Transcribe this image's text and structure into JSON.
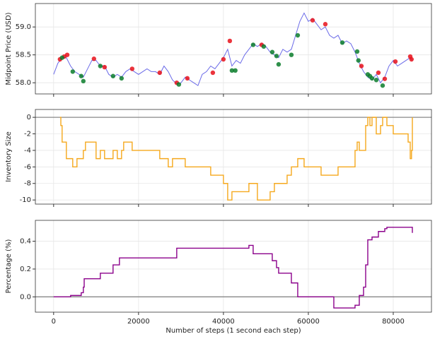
{
  "chart_data": [
    {
      "type": "line",
      "ylabel": "Midpoint Price (USD)",
      "ylim": [
        57.8,
        59.42
      ],
      "yticks": [
        {
          "value": 58,
          "label": "58.0"
        },
        58.5,
        {
          "value": 59,
          "label": "59.0"
        }
      ],
      "grid": true,
      "series": [
        {
          "color": "#5a5ae6",
          "x": [
            0,
            1000,
            2000,
            3000,
            4000,
            5000,
            6000,
            7000,
            8000,
            9000,
            10000,
            11000,
            12000,
            13000,
            14000,
            15000,
            16000,
            17000,
            18000,
            19000,
            20000,
            21000,
            22000,
            23000,
            24000,
            25000,
            26000,
            27000,
            28000,
            29000,
            30000,
            31000,
            32000,
            33000,
            34000,
            35000,
            36000,
            37000,
            38000,
            39000,
            40000,
            41000,
            42000,
            43000,
            44000,
            45000,
            46000,
            47000,
            48000,
            49000,
            50000,
            51000,
            52000,
            53000,
            54000,
            55000,
            56000,
            57000,
            58000,
            59000,
            60000,
            61000,
            62000,
            63000,
            64000,
            65000,
            66000,
            67000,
            68000,
            69000,
            70000,
            71000,
            72000,
            73000,
            74000,
            75000,
            76000,
            77000,
            78000,
            79000,
            80000,
            81000,
            82000,
            83000,
            84000,
            84500
          ],
          "values": [
            58.15,
            58.35,
            58.45,
            58.45,
            58.3,
            58.2,
            58.15,
            58.1,
            58.25,
            58.4,
            58.4,
            58.3,
            58.3,
            58.15,
            58.1,
            58.15,
            58.1,
            58.2,
            58.25,
            58.2,
            58.15,
            58.2,
            58.25,
            58.2,
            58.2,
            58.15,
            58.3,
            58.2,
            58.05,
            57.98,
            58.0,
            58.1,
            58.05,
            58.0,
            57.95,
            58.15,
            58.2,
            58.3,
            58.25,
            58.35,
            58.45,
            58.6,
            58.3,
            58.4,
            58.35,
            58.5,
            58.6,
            58.7,
            58.65,
            58.7,
            58.65,
            58.55,
            58.5,
            58.45,
            58.6,
            58.55,
            58.6,
            58.85,
            59.1,
            59.25,
            59.1,
            59.15,
            59.05,
            58.95,
            59.0,
            58.85,
            58.8,
            58.85,
            58.7,
            58.75,
            58.7,
            58.55,
            58.35,
            58.2,
            58.1,
            58.05,
            58.15,
            58.0,
            58.1,
            58.3,
            58.4,
            58.3,
            58.35,
            58.4,
            58.45,
            58.4
          ]
        }
      ],
      "points": [
        {
          "color": "#e8101a",
          "x": [
            1500,
            2500,
            3200,
            9500,
            12000,
            18500,
            25000,
            29000,
            31500,
            37500,
            40000,
            41500,
            49000,
            61000,
            64000,
            72500,
            76500,
            78000,
            80500,
            84000,
            84300
          ],
          "values": [
            58.42,
            58.47,
            58.5,
            58.43,
            58.28,
            58.25,
            58.18,
            58.0,
            58.08,
            58.18,
            58.42,
            58.75,
            58.68,
            59.12,
            59.05,
            58.3,
            58.18,
            58.07,
            58.38,
            58.47,
            58.42
          ]
        },
        {
          "color": "#0a7d2c",
          "x": [
            2000,
            4500,
            6500,
            7000,
            11000,
            14000,
            16000,
            29500,
            42000,
            42800,
            47000,
            49500,
            51500,
            52500,
            53000,
            56000,
            57500,
            68000,
            71500,
            71800,
            74000,
            74500,
            75000,
            76000,
            77500
          ],
          "values": [
            58.45,
            58.2,
            58.12,
            58.03,
            58.3,
            58.12,
            58.08,
            57.97,
            58.22,
            58.22,
            58.68,
            58.65,
            58.55,
            58.48,
            58.33,
            58.5,
            58.85,
            58.72,
            58.56,
            58.4,
            58.15,
            58.12,
            58.08,
            58.05,
            57.95
          ]
        }
      ]
    },
    {
      "type": "step",
      "ylabel": "Inventory Size",
      "ylim": [
        -10.5,
        0.95
      ],
      "yticks": [
        0,
        -2,
        -4,
        -6,
        -8,
        -10
      ],
      "grid": true,
      "reference_line": 0,
      "series": [
        {
          "color": "#f5a81c",
          "x": [
            1500,
            1700,
            2000,
            3000,
            4500,
            5500,
            7000,
            7500,
            10000,
            11000,
            12000,
            14000,
            15000,
            16000,
            16500,
            18500,
            25000,
            27000,
            28000,
            31000,
            37000,
            40000,
            41000,
            42000,
            46000,
            48000,
            51000,
            52000,
            55000,
            56000,
            57500,
            59000,
            63000,
            67000,
            71000,
            71500,
            72000,
            73500,
            74000,
            74500,
            75000,
            76000,
            77000,
            77500,
            78500,
            80000,
            83500,
            84000,
            84300,
            84500
          ],
          "values": [
            0,
            -1,
            -3,
            -5,
            -6,
            -5,
            -4,
            -3,
            -5,
            -4,
            -5,
            -4,
            -5,
            -4,
            -3,
            -4,
            -5,
            -6,
            -5,
            -6,
            -7,
            -8,
            -10,
            -9,
            -8,
            -10,
            -9,
            -8,
            -7,
            -6,
            -5,
            -6,
            -7,
            -6,
            -4,
            -3,
            -4,
            -1,
            0,
            -1,
            0,
            -2,
            -1,
            0,
            -1,
            -2,
            -3,
            -5,
            -4,
            0
          ]
        }
      ]
    },
    {
      "type": "step",
      "ylabel": "Percentage (%)",
      "xlabel": "Number of steps (1 second each step)",
      "xlim": [
        -4300,
        89000
      ],
      "xticks": [
        0,
        20000,
        40000,
        60000,
        80000
      ],
      "ylim": [
        -0.11,
        0.55
      ],
      "yticks": [
        {
          "value": 0,
          "label": "0.0"
        },
        0.2,
        0.4
      ],
      "grid": true,
      "reference_line": 0,
      "series": [
        {
          "color": "#8b008b",
          "x": [
            0,
            4000,
            6500,
            7000,
            7200,
            11000,
            14000,
            15500,
            29000,
            46000,
            47000,
            51500,
            52500,
            53000,
            56000,
            57500,
            66000,
            71000,
            72000,
            73000,
            73500,
            74000,
            75000,
            76500,
            78000,
            78500,
            84500
          ],
          "values": [
            0,
            0.01,
            0.03,
            0.07,
            0.13,
            0.17,
            0.23,
            0.28,
            0.35,
            0.37,
            0.31,
            0.26,
            0.21,
            0.17,
            0.1,
            0.0,
            -0.08,
            -0.06,
            0.01,
            0.07,
            0.23,
            0.41,
            0.43,
            0.47,
            0.49,
            0.5,
            0.46
          ]
        }
      ]
    }
  ]
}
